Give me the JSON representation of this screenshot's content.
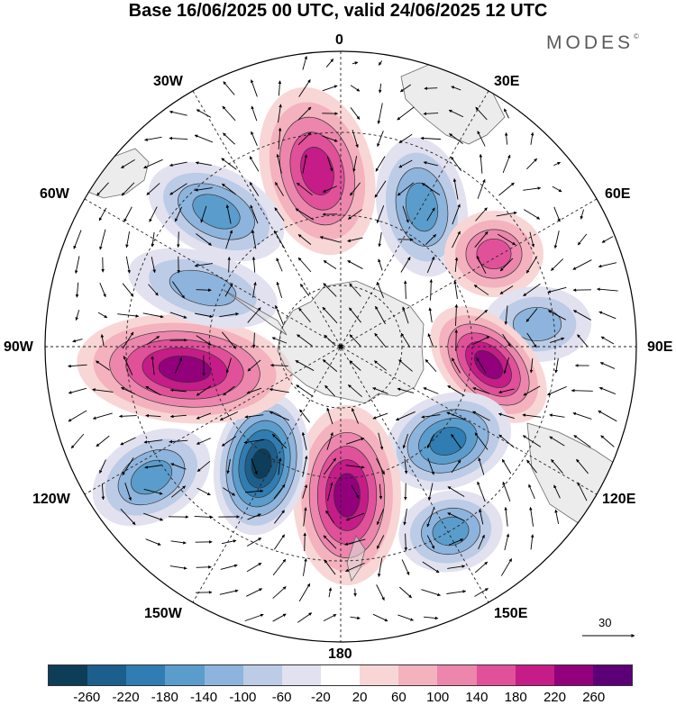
{
  "title": "Base 16/06/2025 00 UTC, valid 24/06/2025 12 UTC",
  "brand": "MODES",
  "brand_mark": "©",
  "longitude_labels": {
    "lon_0": "0",
    "lon_30e": "30E",
    "lon_60e": "60E",
    "lon_90e": "90E",
    "lon_120e": "120E",
    "lon_150e": "150E",
    "lon_180": "180",
    "lon_150w": "150W",
    "lon_120w": "120W",
    "lon_90w": "90W",
    "lon_60w": "60W",
    "lon_30w": "30W"
  },
  "reference_vector": {
    "value": "30"
  },
  "colorbar": {
    "colors": [
      "#0e3d5a",
      "#1c5f8c",
      "#2f7db2",
      "#5a9dcc",
      "#8db4dc",
      "#bccbe6",
      "#e2e1ef",
      "#ffffff",
      "#f8d6d6",
      "#f3b2be",
      "#ec86ac",
      "#e0519a",
      "#c51c88",
      "#92007c",
      "#5c0078"
    ],
    "ticks": [
      "-260",
      "-220",
      "-180",
      "-140",
      "-100",
      "-60",
      "-20",
      "20",
      "60",
      "100",
      "140",
      "180",
      "220",
      "260"
    ]
  },
  "anomaly_centers": [
    {
      "sign": "positive",
      "approx_value": 180,
      "near": "north of pole toward 0"
    },
    {
      "sign": "negative",
      "approx_value": -140,
      "near": "30W"
    },
    {
      "sign": "negative",
      "approx_value": -140,
      "near": "30E"
    },
    {
      "sign": "positive",
      "approx_value": 140,
      "near": "60E"
    },
    {
      "sign": "negative",
      "approx_value": -100,
      "near": "75E"
    },
    {
      "sign": "positive",
      "approx_value": 220,
      "near": "100E"
    },
    {
      "sign": "negative",
      "approx_value": -180,
      "near": "130E"
    },
    {
      "sign": "negative",
      "approx_value": -140,
      "near": "150E"
    },
    {
      "sign": "positive",
      "approx_value": 220,
      "near": "180"
    },
    {
      "sign": "negative",
      "approx_value": -260,
      "near": "150W"
    },
    {
      "sign": "negative",
      "approx_value": -140,
      "near": "120W"
    },
    {
      "sign": "positive",
      "approx_value": 220,
      "near": "90W"
    },
    {
      "sign": "negative",
      "approx_value": -100,
      "near": "60W"
    }
  ]
}
